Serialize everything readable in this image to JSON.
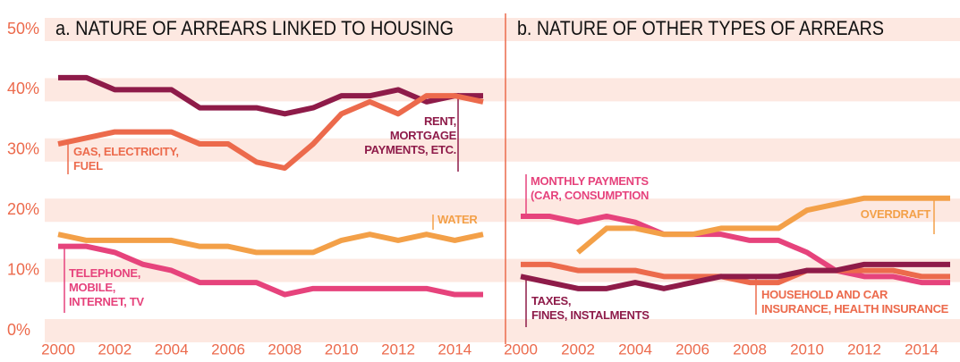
{
  "chart_data": [
    {
      "type": "line",
      "title": "a. NATURE OF ARREARS LINKED TO HOUSING",
      "x": [
        2000,
        2001,
        2002,
        2003,
        2004,
        2005,
        2006,
        2007,
        2008,
        2009,
        2010,
        2011,
        2012,
        2013,
        2014,
        2015
      ],
      "xlim": [
        2000,
        2015
      ],
      "xticks": [
        2000,
        2002,
        2004,
        2006,
        2008,
        2010,
        2012,
        2014
      ],
      "ylim": [
        0,
        50
      ],
      "yticks": [
        {
          "value": 0,
          "label": "0%"
        },
        {
          "value": 10,
          "label": "10%"
        },
        {
          "value": 20,
          "label": "20%"
        },
        {
          "value": 30,
          "label": "30%"
        },
        {
          "value": 40,
          "label": "40%"
        },
        {
          "value": 50,
          "label": "50%"
        }
      ],
      "grid": true,
      "series": [
        {
          "name": "RENT,\nMORTGAGE\nPAYMENTS, ETC.",
          "color": "#8e1b49",
          "values": [
            42,
            42,
            40,
            40,
            40,
            37,
            37,
            37,
            36,
            37,
            39,
            39,
            40,
            38,
            39,
            39
          ]
        },
        {
          "name": "GAS, ELECTRICITY,\nFUEL",
          "color": "#ec6a4c",
          "values": [
            31,
            32,
            33,
            33,
            33,
            31,
            31,
            28,
            27,
            31,
            36,
            38,
            36,
            39,
            39,
            38
          ]
        },
        {
          "name": "WATER",
          "color": "#f3a048",
          "values": [
            16,
            15,
            15,
            15,
            15,
            14,
            14,
            13,
            13,
            13,
            15,
            16,
            15,
            16,
            15,
            16
          ]
        },
        {
          "name": "TELEPHONE,\nMOBILE,\nINTERNET, TV",
          "color": "#e6437c",
          "values": [
            14,
            14,
            13,
            11,
            10,
            8,
            8,
            8,
            6,
            7,
            7,
            7,
            7,
            7,
            6,
            6
          ]
        }
      ]
    },
    {
      "type": "line",
      "title": "b. NATURE OF OTHER TYPES OF ARREARS",
      "x": [
        2000,
        2001,
        2002,
        2003,
        2004,
        2005,
        2006,
        2007,
        2008,
        2009,
        2010,
        2011,
        2012,
        2013,
        2014,
        2015
      ],
      "xlim": [
        2000,
        2015
      ],
      "xticks": [
        2000,
        2002,
        2004,
        2006,
        2008,
        2010,
        2012,
        2014
      ],
      "ylim": [
        0,
        50
      ],
      "series": [
        {
          "name": "MONTHLY PAYMENTS\n(CAR, CONSUMPTION",
          "color": "#e6437c",
          "values": [
            19,
            19,
            18,
            19,
            18,
            16,
            16,
            16,
            15,
            15,
            13,
            10,
            9,
            9,
            8,
            8
          ]
        },
        {
          "name": "OVERDRAFT",
          "color": "#f3a048",
          "values": [
            null,
            null,
            13,
            17,
            17,
            16,
            16,
            17,
            17,
            17,
            20,
            21,
            22,
            22,
            22,
            22
          ]
        },
        {
          "name": "HOUSEHOLD AND CAR\nINSURANCE, HEALTH INSURANCE",
          "color": "#ec6a4c",
          "values": [
            11,
            11,
            10,
            10,
            10,
            9,
            9,
            9,
            8,
            8,
            10,
            10,
            10,
            10,
            9,
            9
          ]
        },
        {
          "name": "TAXES,\nFINES, INSTALMENTS",
          "color": "#8e1b49",
          "values": [
            9,
            8,
            7,
            7,
            8,
            7,
            8,
            9,
            9,
            9,
            10,
            10,
            11,
            11,
            11,
            11
          ]
        }
      ]
    }
  ]
}
